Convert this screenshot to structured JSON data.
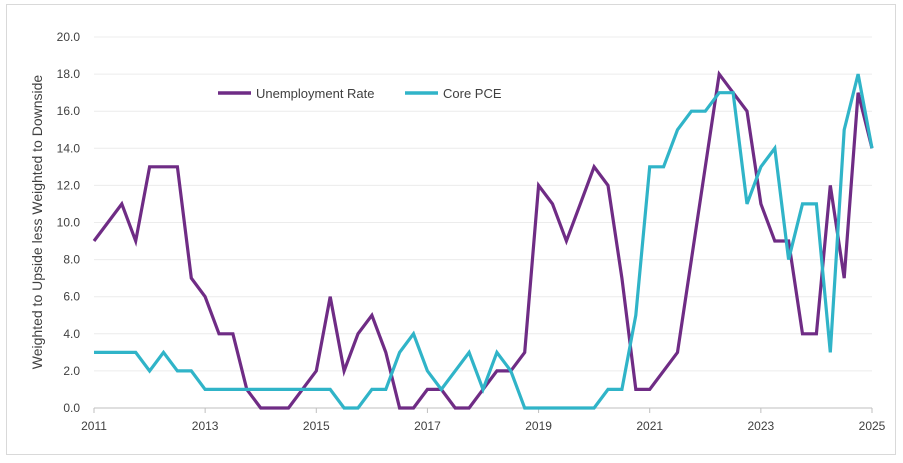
{
  "chart_data": {
    "type": "line",
    "title": "",
    "xlabel": "",
    "ylabel": "Weighted to Upside less Weighted to Downside",
    "ylim": [
      0,
      20
    ],
    "y_ticks": [
      "0.0",
      "2.0",
      "4.0",
      "6.0",
      "8.0",
      "10.0",
      "12.0",
      "14.0",
      "16.0",
      "18.0",
      "20.0"
    ],
    "x_ticks": [
      "2011",
      "2013",
      "2015",
      "2017",
      "2019",
      "2021",
      "2023",
      "2025"
    ],
    "xlim": [
      2011,
      2025
    ],
    "grid": true,
    "legend_position": "top-left",
    "x": [
      2011.0,
      2011.25,
      2011.5,
      2011.75,
      2012.0,
      2012.25,
      2012.5,
      2012.75,
      2013.0,
      2013.25,
      2013.5,
      2013.75,
      2014.0,
      2014.25,
      2014.5,
      2014.75,
      2015.0,
      2015.25,
      2015.5,
      2015.75,
      2016.0,
      2016.25,
      2016.5,
      2016.75,
      2017.0,
      2017.25,
      2017.5,
      2017.75,
      2018.0,
      2018.25,
      2018.5,
      2018.75,
      2019.0,
      2019.25,
      2019.5,
      2019.75,
      2020.0,
      2020.25,
      2020.5,
      2020.75,
      2021.0,
      2021.25,
      2021.5,
      2021.75,
      2022.0,
      2022.25,
      2022.5,
      2022.75,
      2023.0,
      2023.25,
      2023.5,
      2023.75,
      2024.0,
      2024.25,
      2024.5,
      2024.75,
      2025.0
    ],
    "series": [
      {
        "name": "Unemployment Rate",
        "color": "#6f2c85",
        "values": [
          9,
          10,
          11,
          9,
          13,
          13,
          13,
          7,
          6,
          4,
          4,
          1,
          0,
          0,
          0,
          1,
          2,
          6,
          2,
          4,
          5,
          3,
          0,
          0,
          1,
          1,
          0,
          0,
          1,
          2,
          2,
          3,
          12,
          11,
          9,
          11,
          13,
          12,
          7,
          1,
          1,
          2,
          3,
          8,
          13,
          18,
          17,
          16,
          11,
          9,
          9,
          4,
          4,
          12,
          7,
          17,
          14
        ]
      },
      {
        "name": "Core PCE",
        "color": "#30b4c8",
        "values": [
          3,
          3,
          3,
          3,
          2,
          3,
          2,
          2,
          1,
          1,
          1,
          1,
          1,
          1,
          1,
          1,
          1,
          1,
          0,
          0,
          1,
          1,
          3,
          4,
          2,
          1,
          2,
          3,
          1,
          3,
          2,
          0,
          0,
          0,
          0,
          0,
          0,
          1,
          1,
          5,
          13,
          13,
          15,
          16,
          16,
          17,
          17,
          11,
          13,
          14,
          8,
          11,
          11,
          3,
          15,
          18,
          14
        ]
      }
    ]
  }
}
